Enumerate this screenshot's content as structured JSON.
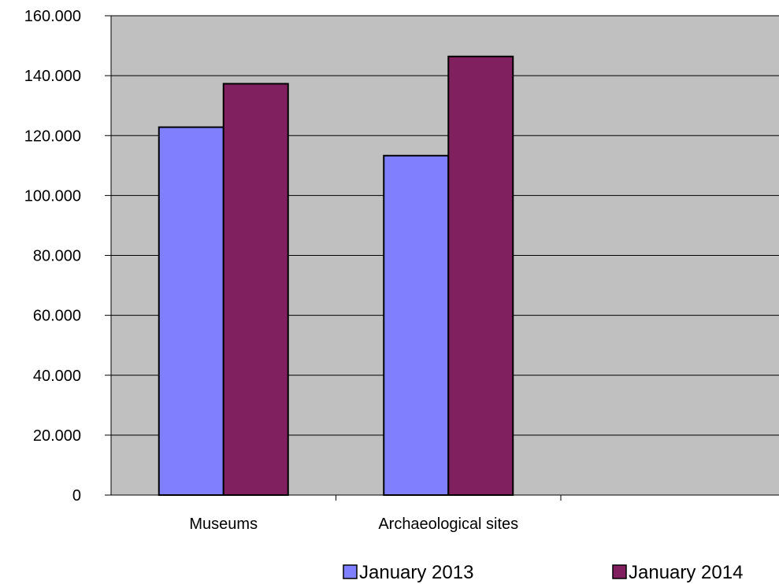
{
  "chart_data": {
    "type": "bar",
    "categories": [
      "Museums",
      "Archaeological sites",
      ""
    ],
    "series": [
      {
        "name": "January 2013",
        "values": [
          122800,
          113300,
          null
        ],
        "color": "#8080ff"
      },
      {
        "name": "January 2014",
        "values": [
          137300,
          146400,
          null
        ],
        "color": "#80205f"
      }
    ],
    "ylim": [
      0,
      160000
    ],
    "yticks": [
      0,
      20000,
      40000,
      60000,
      80000,
      100000,
      120000,
      140000,
      160000
    ],
    "ytick_labels": [
      "0",
      "20.000",
      "40.000",
      "60.000",
      "80.000",
      "100.000",
      "120.000",
      "140.000",
      "160.000"
    ],
    "grid": true,
    "plot_background": "#c0c0c0",
    "legend_position": "bottom"
  }
}
